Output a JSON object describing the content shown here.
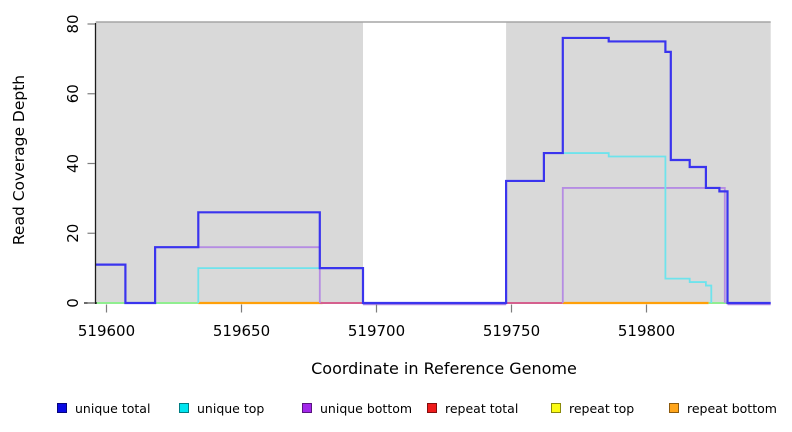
{
  "chart_data": {
    "type": "line",
    "title": "",
    "xlabel": "Coordinate in Reference Genome",
    "ylabel": "Read Coverage Depth",
    "x_ticks": [
      519600,
      519650,
      519700,
      519750,
      519800
    ],
    "y_ticks": [
      0,
      20,
      40,
      60,
      80
    ],
    "x_range": [
      519596,
      519846
    ],
    "y_range": [
      0,
      81
    ],
    "grid": false,
    "legend_position": "bottom",
    "shaded_regions": [
      {
        "from": 519596,
        "to": 519695
      },
      {
        "from": 519748,
        "to": 519846
      }
    ],
    "colors": {
      "blue": "#3a34ee",
      "cyan": "#6ee3ec",
      "purple": "#b58ce3",
      "green": "#90ee90",
      "orange": "#ffa008",
      "pink": "#d5608e",
      "region": "#d9d9d9",
      "region_top_line": "#a6a6a6",
      "axis": "#1b1b1b",
      "tick": "#7d7d7d"
    },
    "lines": [
      {
        "name": "baseline-zero-left-green",
        "color": "green",
        "width": 2.0,
        "dy": 0,
        "points": [
          [
            519596,
            0
          ],
          [
            519634,
            0
          ]
        ]
      },
      {
        "name": "baseline-repeat-bottom-left",
        "color": "orange",
        "width": 2.2,
        "dy": 0,
        "points": [
          [
            519634,
            0
          ],
          [
            519680,
            0
          ]
        ]
      },
      {
        "name": "baseline-repeat-total-left",
        "color": "pink",
        "width": 2.0,
        "dy": 0,
        "points": [
          [
            519679,
            0
          ],
          [
            519695,
            0
          ]
        ]
      },
      {
        "name": "baseline-unique-bottom-gap",
        "color": "purple",
        "width": 1.8,
        "dy": 1.4,
        "points": [
          [
            519695,
            0
          ],
          [
            519748,
            0
          ]
        ]
      },
      {
        "name": "baseline-repeat-total-right",
        "color": "pink",
        "width": 2.0,
        "dy": 0,
        "points": [
          [
            519748,
            0
          ],
          [
            519769,
            0
          ]
        ]
      },
      {
        "name": "baseline-repeat-bottom-right",
        "color": "orange",
        "width": 2.2,
        "dy": 0,
        "points": [
          [
            519769,
            0
          ],
          [
            519823,
            0
          ]
        ]
      },
      {
        "name": "baseline-zero-right-green",
        "color": "green",
        "width": 2.0,
        "dy": 0,
        "points": [
          [
            519823,
            0
          ],
          [
            519830,
            0
          ]
        ]
      },
      {
        "name": "baseline-unique-bottom-end",
        "color": "purple",
        "width": 1.8,
        "dy": 1.4,
        "points": [
          [
            519830,
            0
          ],
          [
            519846,
            0
          ]
        ]
      },
      {
        "name": "unique-bottom-left",
        "color": "purple",
        "width": 1.8,
        "dy": 0,
        "points": [
          [
            519618,
            16
          ],
          [
            519679,
            16
          ],
          [
            519679,
            0
          ]
        ]
      },
      {
        "name": "unique-bottom-right",
        "color": "purple",
        "width": 1.8,
        "dy": 0,
        "points": [
          [
            519769,
            0
          ],
          [
            519769,
            33
          ],
          [
            519829,
            33
          ],
          [
            519829,
            0
          ]
        ]
      },
      {
        "name": "unique-top-left",
        "color": "cyan",
        "width": 1.8,
        "dy": 0,
        "points": [
          [
            519634,
            0
          ],
          [
            519634,
            10
          ],
          [
            519695,
            10
          ]
        ]
      },
      {
        "name": "unique-top-right",
        "color": "cyan",
        "width": 1.8,
        "dy": 0,
        "points": [
          [
            519748,
            0
          ],
          [
            519748,
            35
          ],
          [
            519762,
            35
          ],
          [
            519762,
            43
          ],
          [
            519786,
            43
          ],
          [
            519786,
            42
          ],
          [
            519807,
            42
          ],
          [
            519807,
            7
          ],
          [
            519816,
            7
          ],
          [
            519816,
            6
          ],
          [
            519822,
            6
          ],
          [
            519822,
            5
          ],
          [
            519824,
            5
          ],
          [
            519824,
            0
          ]
        ]
      },
      {
        "name": "unique-total",
        "color": "blue",
        "width": 2.2,
        "dy": 0,
        "points": [
          [
            519596,
            11
          ],
          [
            519607,
            11
          ],
          [
            519607,
            0
          ],
          [
            519618,
            0
          ],
          [
            519618,
            16
          ],
          [
            519634,
            16
          ],
          [
            519634,
            26
          ],
          [
            519679,
            26
          ],
          [
            519679,
            10
          ],
          [
            519695,
            10
          ],
          [
            519695,
            0
          ],
          [
            519748,
            0
          ],
          [
            519748,
            35
          ],
          [
            519762,
            35
          ],
          [
            519762,
            43
          ],
          [
            519769,
            43
          ],
          [
            519769,
            76
          ],
          [
            519786,
            76
          ],
          [
            519786,
            75
          ],
          [
            519807,
            75
          ],
          [
            519807,
            72
          ],
          [
            519809,
            72
          ],
          [
            519809,
            41
          ],
          [
            519816,
            41
          ],
          [
            519816,
            39
          ],
          [
            519822,
            39
          ],
          [
            519822,
            33
          ],
          [
            519827,
            33
          ],
          [
            519827,
            32
          ],
          [
            519830,
            32
          ],
          [
            519830,
            0
          ],
          [
            519846,
            0
          ]
        ]
      }
    ],
    "legend": [
      {
        "label": "unique total",
        "color": "#0b0be4"
      },
      {
        "label": "unique top",
        "color": "#00e4ef"
      },
      {
        "label": "unique bottom",
        "color": "#a227ea"
      },
      {
        "label": "repeat total",
        "color": "#ef1b1b"
      },
      {
        "label": "repeat top",
        "color": "#fbfb14"
      },
      {
        "label": "repeat bottom",
        "color": "#ffa51b"
      }
    ]
  }
}
